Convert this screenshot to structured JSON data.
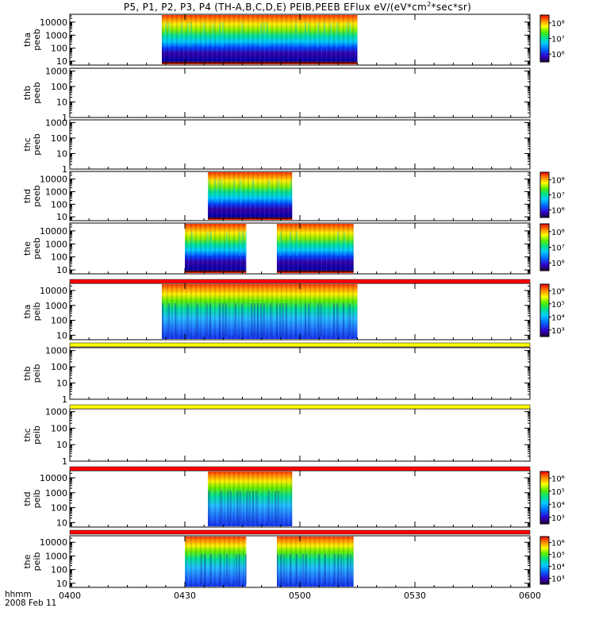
{
  "title_parts": {
    "lead": "P5, P1, P2, P3, P4 (TH-A,B,C,D,E) PEIB,PEEB EFlux eV/(eV*cm",
    "sup": "2",
    "tail": "*sec*sr)"
  },
  "footer": {
    "time_label": "hhmm",
    "date_label": "2008 Feb 11"
  },
  "chart_data": {
    "type": "heatmap",
    "x_axis": {
      "range": [
        "04:00",
        "06:00"
      ],
      "ticks": [
        "0400",
        "0430",
        "0500",
        "0530",
        "0600"
      ],
      "tick_minutes": [
        0,
        30,
        60,
        90,
        120
      ]
    },
    "y_axis": {
      "scale": "log",
      "quantity": "energy (eV)"
    },
    "colormap": "rainbow",
    "panels": [
      {
        "id": "tha-peeb",
        "ylabel": [
          "tha",
          "peeb"
        ],
        "yticks": [
          "10",
          "100",
          "1000",
          "10000"
        ],
        "ylim": [
          5,
          40000
        ],
        "colorbar": {
          "labels": [
            "10⁶",
            "10⁷",
            "10⁸"
          ]
        },
        "data_intervals": [
          [
            "04:24",
            "05:15"
          ]
        ]
      },
      {
        "id": "thb-peeb",
        "ylabel": [
          "thb",
          "peeb"
        ],
        "yticks": [
          "1",
          "10",
          "100",
          "1000"
        ],
        "ylim": [
          1,
          1500
        ],
        "data_intervals": []
      },
      {
        "id": "thc-peeb",
        "ylabel": [
          "thc",
          "peeb"
        ],
        "yticks": [
          "1",
          "10",
          "100",
          "1000"
        ],
        "ylim": [
          1,
          1500
        ],
        "data_intervals": []
      },
      {
        "id": "thd-peeb",
        "ylabel": [
          "thd",
          "peeb"
        ],
        "yticks": [
          "10",
          "100",
          "1000",
          "10000"
        ],
        "ylim": [
          5,
          40000
        ],
        "colorbar": {
          "labels": [
            "10⁶",
            "10⁷",
            "10⁸"
          ]
        },
        "data_intervals": [
          [
            "04:36",
            "04:58"
          ]
        ]
      },
      {
        "id": "the-peeb",
        "ylabel": [
          "the",
          "peeb"
        ],
        "yticks": [
          "10",
          "100",
          "1000",
          "10000"
        ],
        "ylim": [
          5,
          40000
        ],
        "colorbar": {
          "labels": [
            "10⁶",
            "10⁷",
            "10⁸"
          ]
        },
        "data_intervals": [
          [
            "04:30",
            "04:46"
          ],
          [
            "04:54",
            "05:14"
          ]
        ]
      },
      {
        "id": "tha-peib",
        "ylabel": [
          "tha",
          "peib"
        ],
        "yticks": [
          "10",
          "100",
          "1000",
          "10000"
        ],
        "ylim": [
          5,
          30000
        ],
        "colorbar": {
          "labels": [
            "10³",
            "10⁴",
            "10⁵",
            "10⁶"
          ]
        },
        "data_intervals": [
          [
            "04:24",
            "05:15"
          ]
        ]
      },
      {
        "id": "thb-peib",
        "ylabel": [
          "thb",
          "peib"
        ],
        "yticks": [
          "1",
          "10",
          "100",
          "1000"
        ],
        "ylim": [
          1,
          1500
        ],
        "data_intervals": []
      },
      {
        "id": "thc-peib",
        "ylabel": [
          "thc",
          "peib"
        ],
        "yticks": [
          "1",
          "10",
          "100",
          "1000"
        ],
        "ylim": [
          1,
          1500
        ],
        "data_intervals": []
      },
      {
        "id": "thd-peib",
        "ylabel": [
          "thd",
          "peib"
        ],
        "yticks": [
          "10",
          "100",
          "1000",
          "10000"
        ],
        "ylim": [
          5,
          30000
        ],
        "colorbar": {
          "labels": [
            "10³",
            "10⁴",
            "10⁵",
            "10⁶"
          ]
        },
        "data_intervals": [
          [
            "04:36",
            "04:58"
          ]
        ]
      },
      {
        "id": "the-peib",
        "ylabel": [
          "the",
          "peib"
        ],
        "yticks": [
          "10",
          "100",
          "1000",
          "10000"
        ],
        "ylim": [
          5,
          30000
        ],
        "colorbar": {
          "labels": [
            "10³",
            "10⁴",
            "10⁵",
            "10⁶"
          ]
        },
        "data_intervals": [
          [
            "04:30",
            "04:46"
          ],
          [
            "04:54",
            "05:14"
          ]
        ]
      }
    ],
    "status_bars": [
      {
        "between": [
          "the-peeb",
          "tha-peib"
        ],
        "color": "#ff0000"
      },
      {
        "between": [
          "tha-peib",
          "thb-peib"
        ],
        "color": "#ffff00"
      },
      {
        "between": [
          "thb-peib",
          "thc-peib"
        ],
        "color": "#ffff00"
      },
      {
        "between": [
          "thc-peib",
          "thd-peib"
        ],
        "color": "#ff0000"
      },
      {
        "between": [
          "thd-peib",
          "the-peib"
        ],
        "color": "#ff0000"
      }
    ]
  }
}
